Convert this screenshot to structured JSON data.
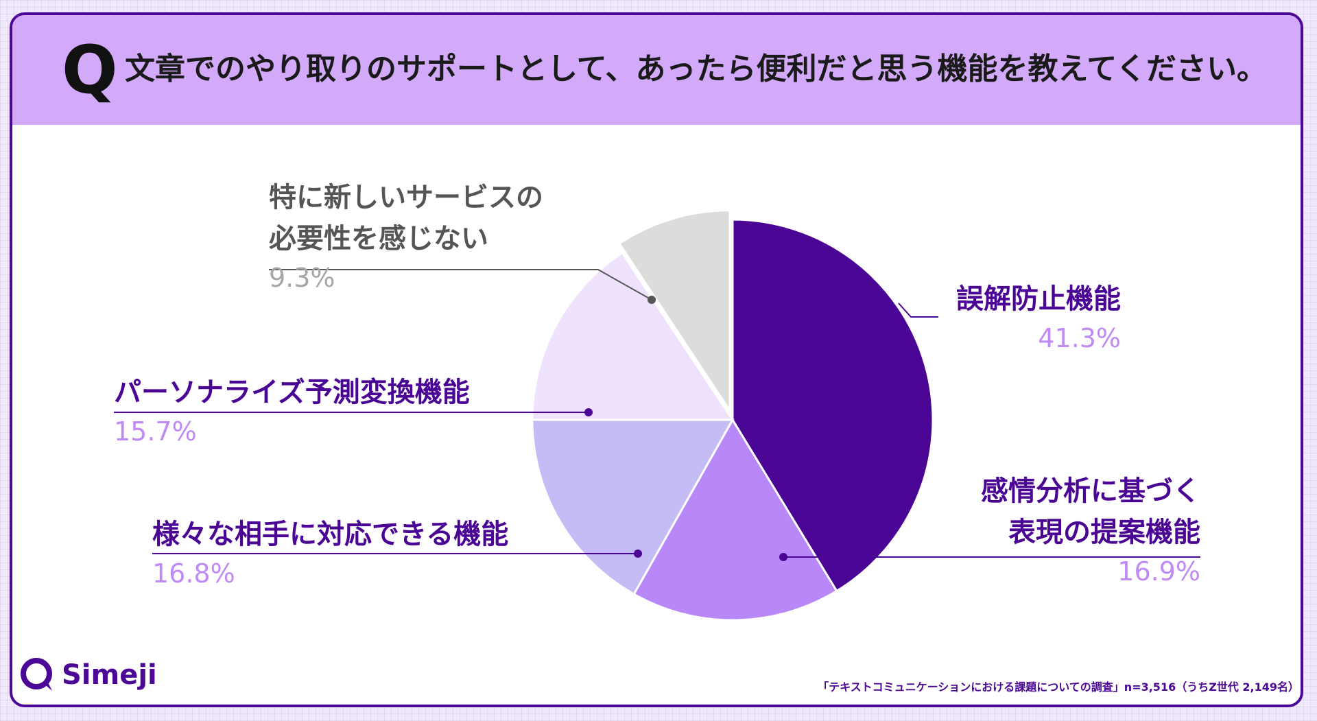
{
  "header": {
    "q_mark": "Q",
    "question": "文章でのやり取りのサポートとして、あったら便利だと思う機能を教えてください。"
  },
  "chart_data": {
    "type": "pie",
    "title": "文章でのやり取りのサポートとして、あったら便利だと思う機能を教えてください。",
    "start": "12 o'clock, clockwise",
    "slices": [
      {
        "name": "誤解防止機能",
        "name_lines": [
          "誤解防止機能"
        ],
        "value": 41.3,
        "label": "41.3%",
        "color": "#4a0595",
        "name_color": "#4a0595",
        "pct_color": "#c08af5"
      },
      {
        "name": "感情分析に基づく表現の提案機能",
        "name_lines": [
          "感情分析に基づく",
          "表現の提案機能"
        ],
        "value": 16.9,
        "label": "16.9%",
        "color": "#b887f8",
        "name_color": "#4a0595",
        "pct_color": "#c08af5"
      },
      {
        "name": "様々な相手に対応できる機能",
        "name_lines": [
          "様々な相手に対応できる機能"
        ],
        "value": 16.8,
        "label": "16.8%",
        "color": "#c5bcf6",
        "name_color": "#4a0595",
        "pct_color": "#c08af5"
      },
      {
        "name": "パーソナライズ予測変換機能",
        "name_lines": [
          "パーソナライズ予測変換機能"
        ],
        "value": 15.7,
        "label": "15.7%",
        "color": "#eee2fd",
        "name_color": "#4a0595",
        "pct_color": "#c08af5"
      },
      {
        "name": "特に新しいサービスの必要性を感じない",
        "name_lines": [
          "特に新しいサービスの",
          "必要性を感じない"
        ],
        "value": 9.3,
        "label": "9.3%",
        "color": "#dcdcdc",
        "name_color": "#555555",
        "pct_color": "#a6a6a6",
        "exploded": true
      }
    ]
  },
  "footer": {
    "logo_text": "Simeji",
    "source": "「テキストコミュニケーションにおける課題についての調査」n=3,516（うちZ世代 2,149名）"
  }
}
